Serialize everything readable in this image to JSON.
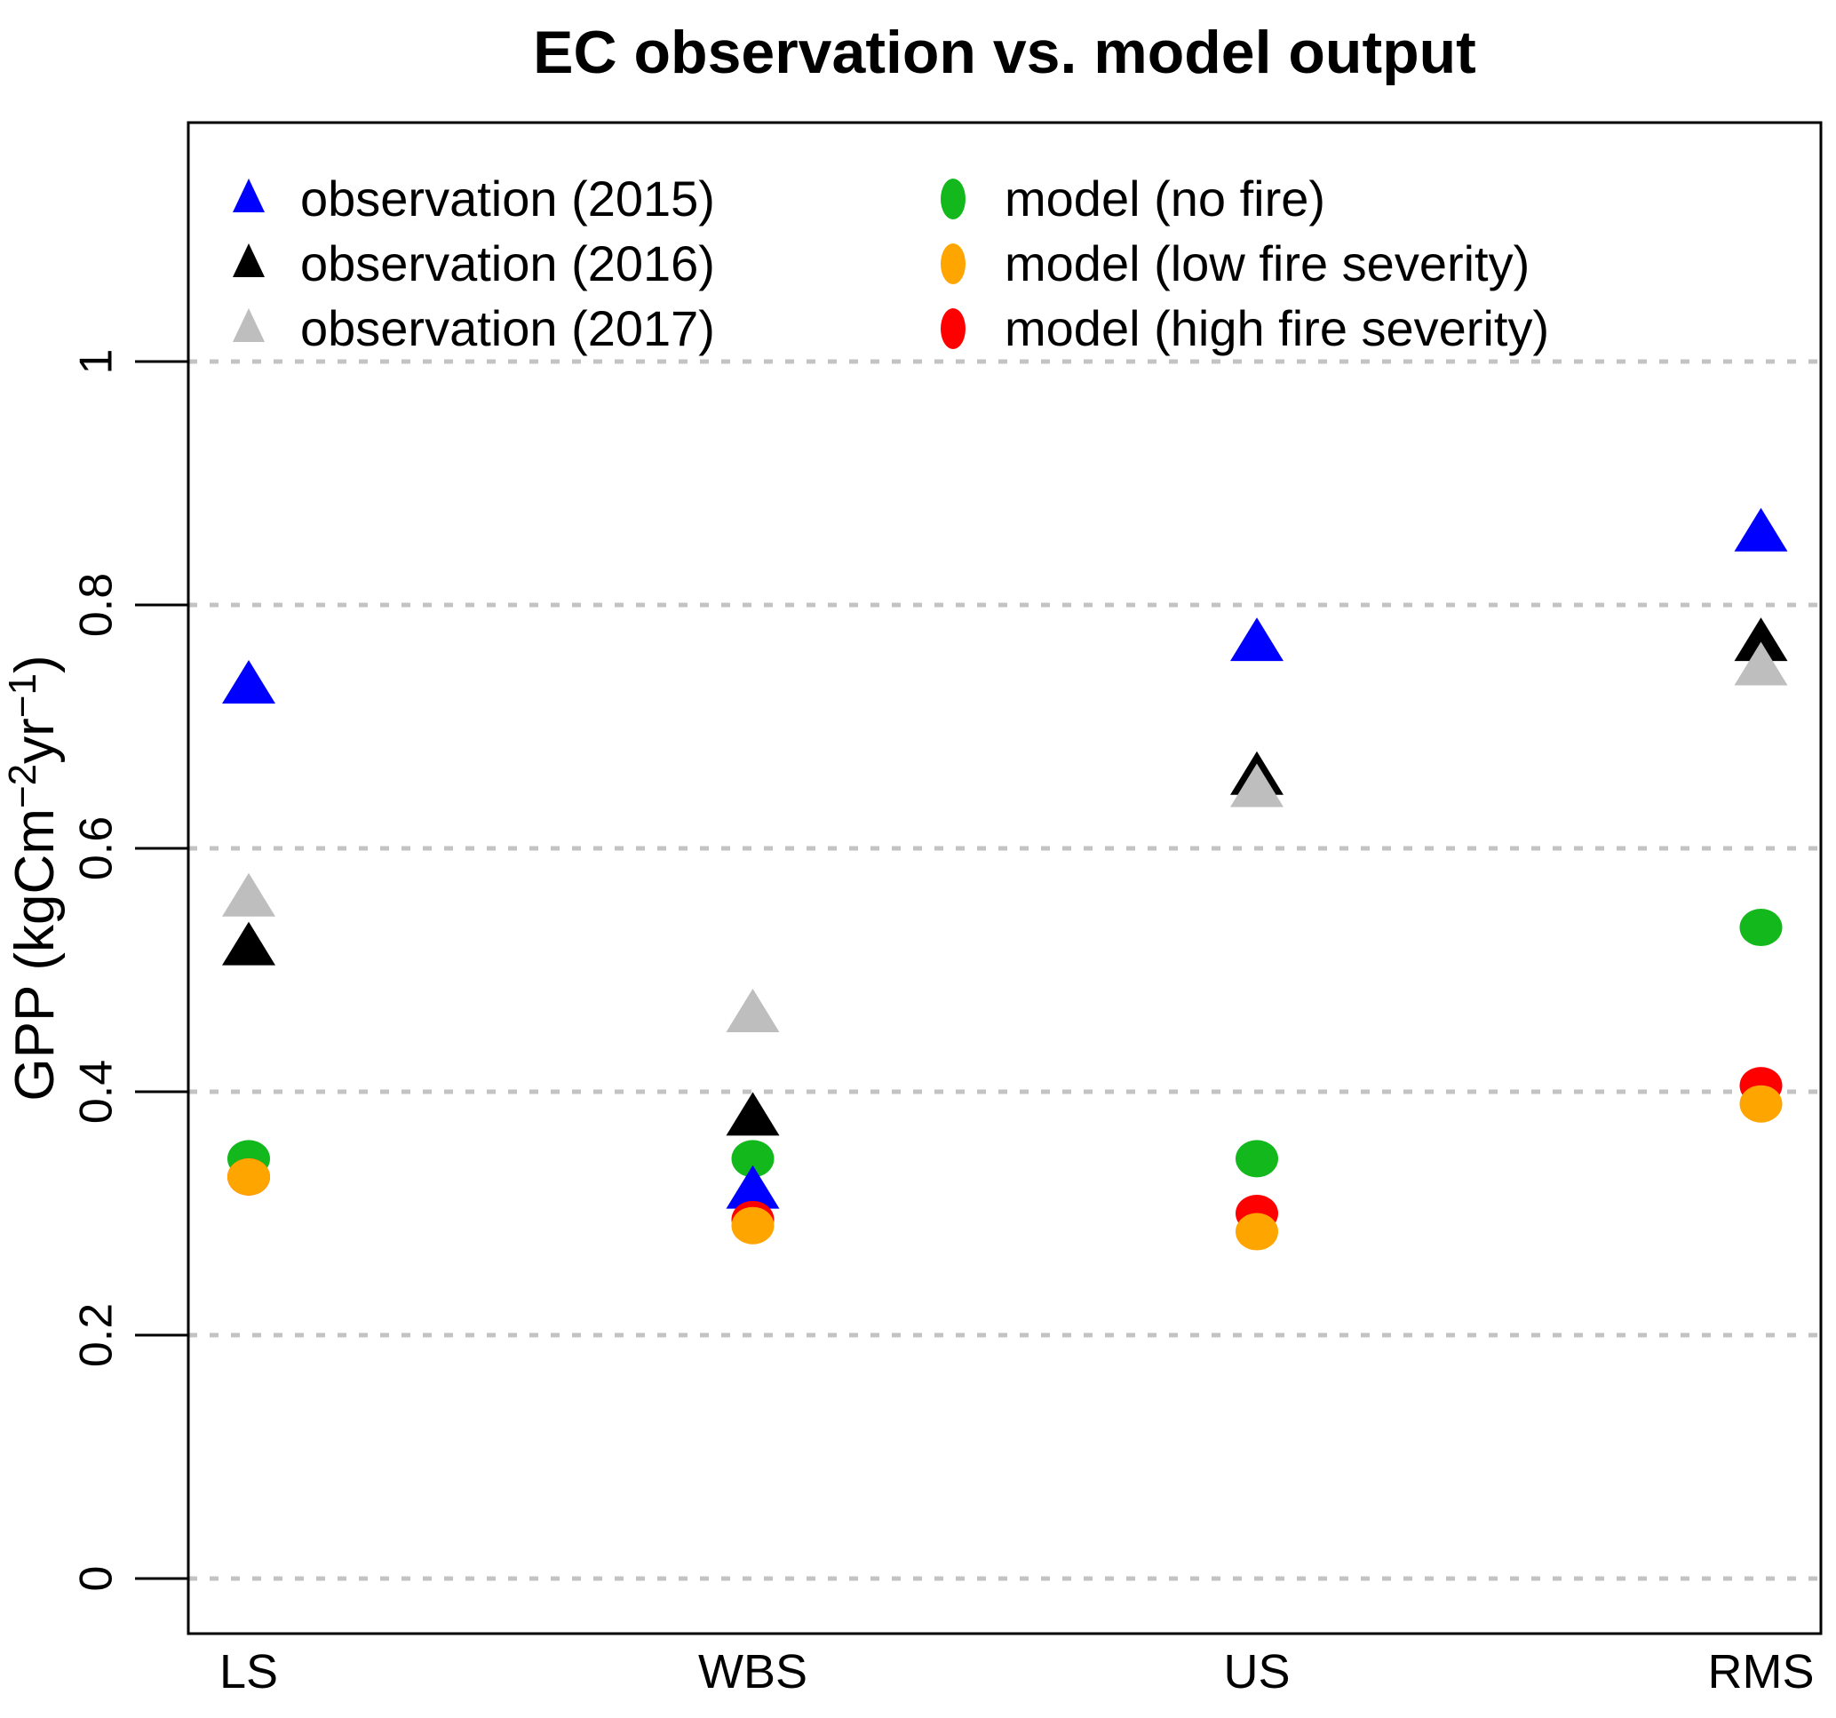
{
  "title": "EC observation vs. model output",
  "chart_data": {
    "type": "scatter",
    "title": "EC observation vs. model output",
    "categories": [
      "LS",
      "WBS",
      "US",
      "RMS"
    ],
    "ylabel_parts": [
      {
        "text": "GPP (kgCm"
      },
      {
        "text": "−2",
        "sup": true
      },
      {
        "text": "yr"
      },
      {
        "text": "−1",
        "sup": true
      },
      {
        "text": ")"
      }
    ],
    "yticks": [
      0,
      0.2,
      0.4,
      0.6,
      0.8,
      1
    ],
    "ytick_labels": [
      "0",
      "0.2",
      "0.4",
      "0.6",
      "0.8",
      "1"
    ],
    "ylim": [
      0,
      1
    ],
    "grid": "dotted-horizontal",
    "legend_position": "top-inside-two-columns",
    "series": [
      {
        "id": "observation-2015",
        "label": "observation (2015)",
        "marker": "triangle",
        "color": "#0000ff",
        "values": [
          0.735,
          0.32,
          0.77,
          0.86
        ],
        "legend_col": 0,
        "legend_row": 0,
        "zorder": 2
      },
      {
        "id": "observation-2016",
        "label": "observation (2016)",
        "marker": "triangle",
        "color": "#000000",
        "values": [
          0.52,
          0.38,
          0.66,
          0.77
        ],
        "legend_col": 0,
        "legend_row": 1,
        "zorder": 3
      },
      {
        "id": "observation-2017",
        "label": "observation (2017)",
        "marker": "triangle",
        "color": "#bebebe",
        "values": [
          0.56,
          0.465,
          0.65,
          0.75
        ],
        "legend_col": 0,
        "legend_row": 2,
        "zorder": 4
      },
      {
        "id": "model-no-fire",
        "label": "model (no fire)",
        "marker": "circle",
        "color": "#13b81c",
        "values": [
          0.345,
          0.345,
          0.345,
          0.535
        ],
        "legend_col": 1,
        "legend_row": 0,
        "zorder": 1
      },
      {
        "id": "model-low-fire-severity",
        "label": "model (low fire severity)",
        "marker": "circle",
        "color": "#ffa500",
        "values": [
          0.33,
          0.29,
          0.285,
          0.39
        ],
        "legend_col": 1,
        "legend_row": 1,
        "zorder": 6
      },
      {
        "id": "model-high-fire-severity",
        "label": "model (high fire severity)",
        "marker": "circle",
        "color": "#ff0000",
        "values": [
          0.33,
          0.295,
          0.3,
          0.405
        ],
        "legend_col": 1,
        "legend_row": 2,
        "zorder": 5
      }
    ]
  }
}
